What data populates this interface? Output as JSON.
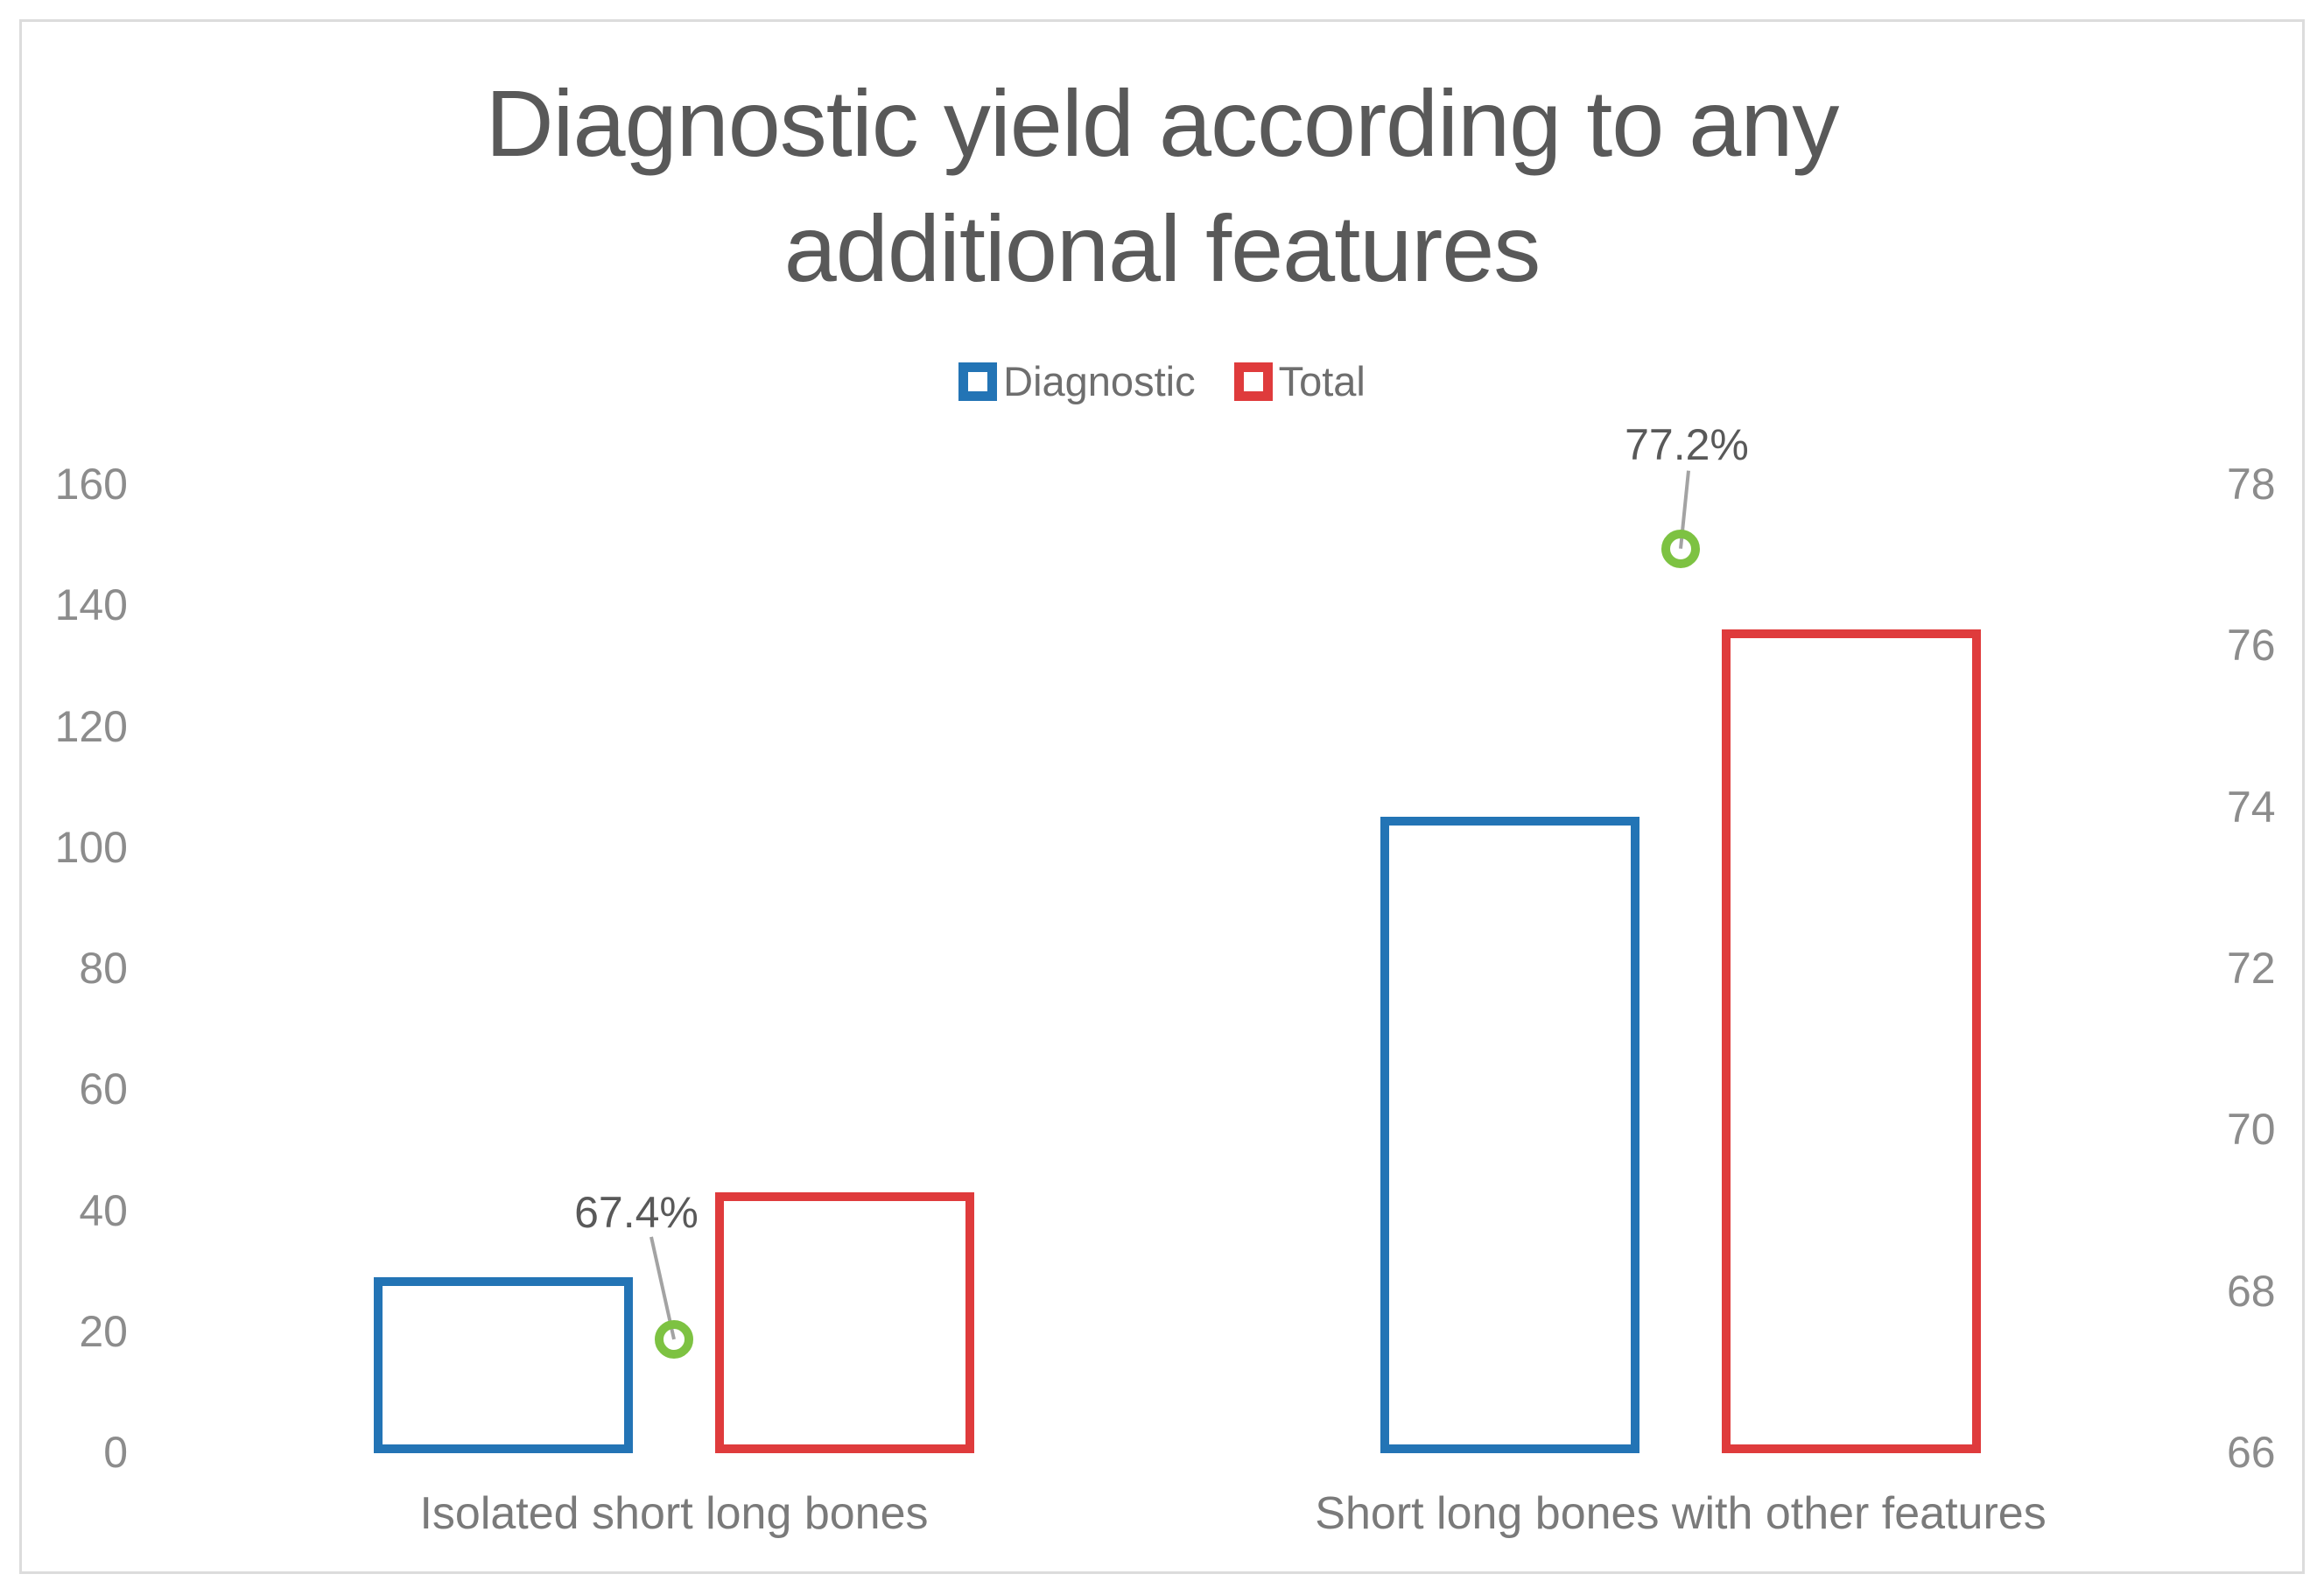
{
  "figure": {
    "background": "#ffffff",
    "border_color": "#dcdcdc"
  },
  "chart_data": {
    "type": "bar",
    "title": "Diagnostic yield according to any additional features",
    "categories": [
      "Isolated short long bones",
      "Short long bones with other features"
    ],
    "series": [
      {
        "name": "Diagnostic",
        "color": "#2374b5",
        "axis": "left",
        "values": [
          29,
          105
        ]
      },
      {
        "name": "Total",
        "color": "#df3b3c",
        "axis": "left",
        "values": [
          43,
          136
        ]
      }
    ],
    "percent_markers": {
      "marker_shape": "hollow-circle",
      "color": "#7dc242",
      "leader_line_color": "#a3a3a3",
      "axis": "right",
      "values": [
        67.4,
        77.2
      ],
      "labels": [
        "67.4%",
        "77.2%"
      ]
    },
    "left_axis": {
      "min": 0,
      "max": 160,
      "step": 20,
      "ticks": [
        "0",
        "20",
        "40",
        "60",
        "80",
        "100",
        "120",
        "140",
        "160"
      ]
    },
    "right_axis": {
      "min": 66,
      "max": 78,
      "step": 2,
      "ticks": [
        "66",
        "68",
        "70",
        "72",
        "74",
        "76",
        "78"
      ]
    },
    "legend_position": "top",
    "grid": false,
    "bar_style": "outlined-hollow"
  },
  "text_colors": {
    "title": "#595959",
    "axis_ticks": "#8c8c8c",
    "category_labels": "#7a7a7a",
    "data_labels": "#595959",
    "legend_labels": "#6e6e6e"
  }
}
